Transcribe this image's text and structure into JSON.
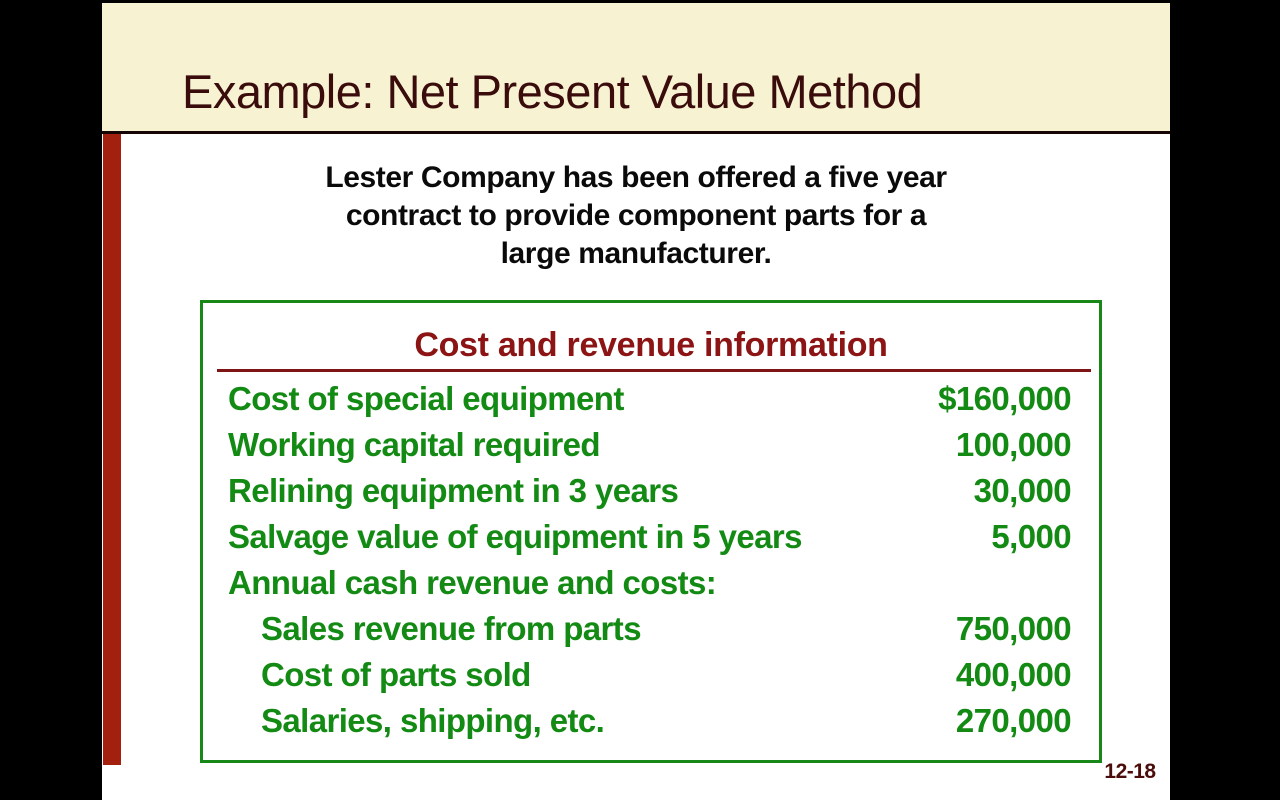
{
  "slide": {
    "title": "Example: Net Present Value Method",
    "page_number": "12-18"
  },
  "intro": {
    "lines": [
      "Lester Company has been offered a five year",
      "contract to provide component parts for a",
      "large manufacturer."
    ]
  },
  "table": {
    "title": "Cost and revenue information",
    "rows": [
      {
        "label": "Cost of special equipment",
        "value": "$160,000",
        "indent": false
      },
      {
        "label": "Working capital required",
        "value": "100,000",
        "indent": false
      },
      {
        "label": "Relining equipment in 3 years",
        "value": "30,000",
        "indent": false
      },
      {
        "label": "Salvage value of equipment in 5 years",
        "value": "5,000",
        "indent": false
      },
      {
        "label": "Annual cash revenue and costs:",
        "value": "",
        "indent": false
      },
      {
        "label": "Sales revenue from parts",
        "value": "750,000",
        "indent": true
      },
      {
        "label": "Cost of parts sold",
        "value": "400,000",
        "indent": true
      },
      {
        "label": "Salaries, shipping, etc.",
        "value": "270,000",
        "indent": true
      }
    ]
  },
  "colors": {
    "frame": "#000000",
    "band_background": "#f7f3d2",
    "title_text": "#3a0c0c",
    "accent_bar": "#a3200f",
    "table_border_green": "#178717",
    "table_text_green": "#138a13",
    "table_header_red": "#8c1414",
    "page_number_red": "#4b0c0c",
    "body_background": "#ffffff"
  }
}
